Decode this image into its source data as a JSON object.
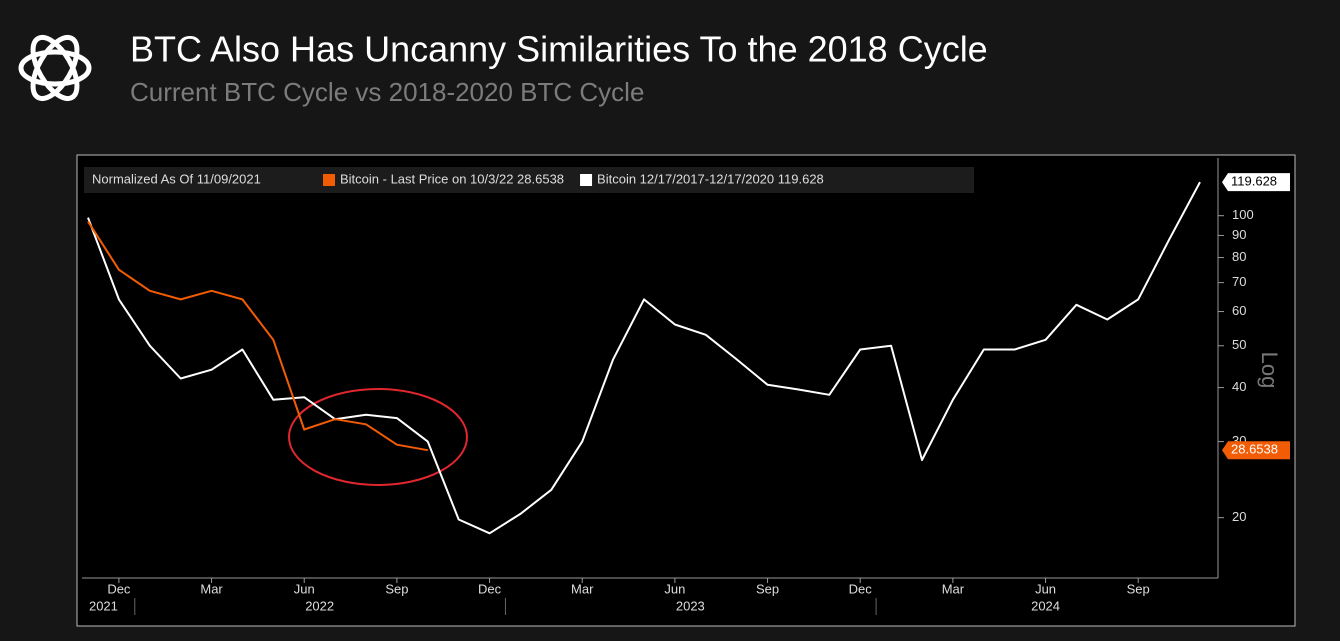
{
  "chart_data": {
    "type": "line",
    "title": "BTC Also Has Uncanny Similarities To the 2018 Cycle",
    "subtitle": "Current BTC Cycle vs 2018-2020 BTC Cycle",
    "legend_note": "Normalized As Of 11/09/2021",
    "y_axis_label": "Log",
    "log_scale": true,
    "x": [
      "2021-11",
      "2021-12",
      "2022-01",
      "2022-02",
      "2022-03",
      "2022-04",
      "2022-05",
      "2022-06",
      "2022-07",
      "2022-08",
      "2022-09",
      "2022-10",
      "2022-11",
      "2022-12",
      "2023-01",
      "2023-02",
      "2023-03",
      "2023-04",
      "2023-05",
      "2023-06",
      "2023-07",
      "2023-08",
      "2023-09",
      "2023-10",
      "2023-11",
      "2023-12",
      "2024-01",
      "2024-02",
      "2024-03",
      "2024-04",
      "2024-05",
      "2024-06",
      "2024-07",
      "2024-08",
      "2024-09",
      "2024-10",
      "2024-11"
    ],
    "series": [
      {
        "name": "Bitcoin - Last Price on 10/3/22 28.6538",
        "color": "#f25c05",
        "values": [
          97,
          75,
          67,
          64,
          67,
          64,
          51.6,
          32,
          33.8,
          32.9,
          29.5,
          28.6538,
          null,
          null,
          null,
          null,
          null,
          null,
          null,
          null,
          null,
          null,
          null,
          null,
          null,
          null,
          null,
          null,
          null,
          null,
          null,
          null,
          null,
          null,
          null,
          null,
          null
        ]
      },
      {
        "name": "Bitcoin 12/17/2017-12/17/2020 119.628",
        "color": "#ffffff",
        "values": [
          99,
          64,
          50,
          42,
          44,
          49,
          37.5,
          38,
          33.8,
          34.6,
          34,
          30,
          19.8,
          18.4,
          20.4,
          23.2,
          30,
          46.5,
          64,
          56,
          53,
          46.5,
          40.6,
          39.6,
          38.5,
          49,
          50,
          27.2,
          37.5,
          49,
          49,
          51.6,
          62.2,
          57.5,
          64,
          88,
          119.628
        ]
      }
    ],
    "ylim": [
      14.5,
      136
    ],
    "yticks": [
      20,
      30,
      40,
      50,
      60,
      70,
      80,
      90,
      100
    ],
    "xticks": [
      {
        "value": "2021-12",
        "label": "Dec"
      },
      {
        "value": "2022-03",
        "label": "Mar"
      },
      {
        "value": "2022-06",
        "label": "Jun"
      },
      {
        "value": "2022-09",
        "label": "Sep"
      },
      {
        "value": "2022-12",
        "label": "Dec"
      },
      {
        "value": "2023-03",
        "label": "Mar"
      },
      {
        "value": "2023-06",
        "label": "Jun"
      },
      {
        "value": "2023-09",
        "label": "Sep"
      },
      {
        "value": "2023-12",
        "label": "Dec"
      },
      {
        "value": "2024-03",
        "label": "Mar"
      },
      {
        "value": "2024-06",
        "label": "Jun"
      },
      {
        "value": "2024-09",
        "label": "Sep"
      }
    ],
    "years": [
      "2021",
      "2022",
      "2023",
      "2024"
    ]
  }
}
